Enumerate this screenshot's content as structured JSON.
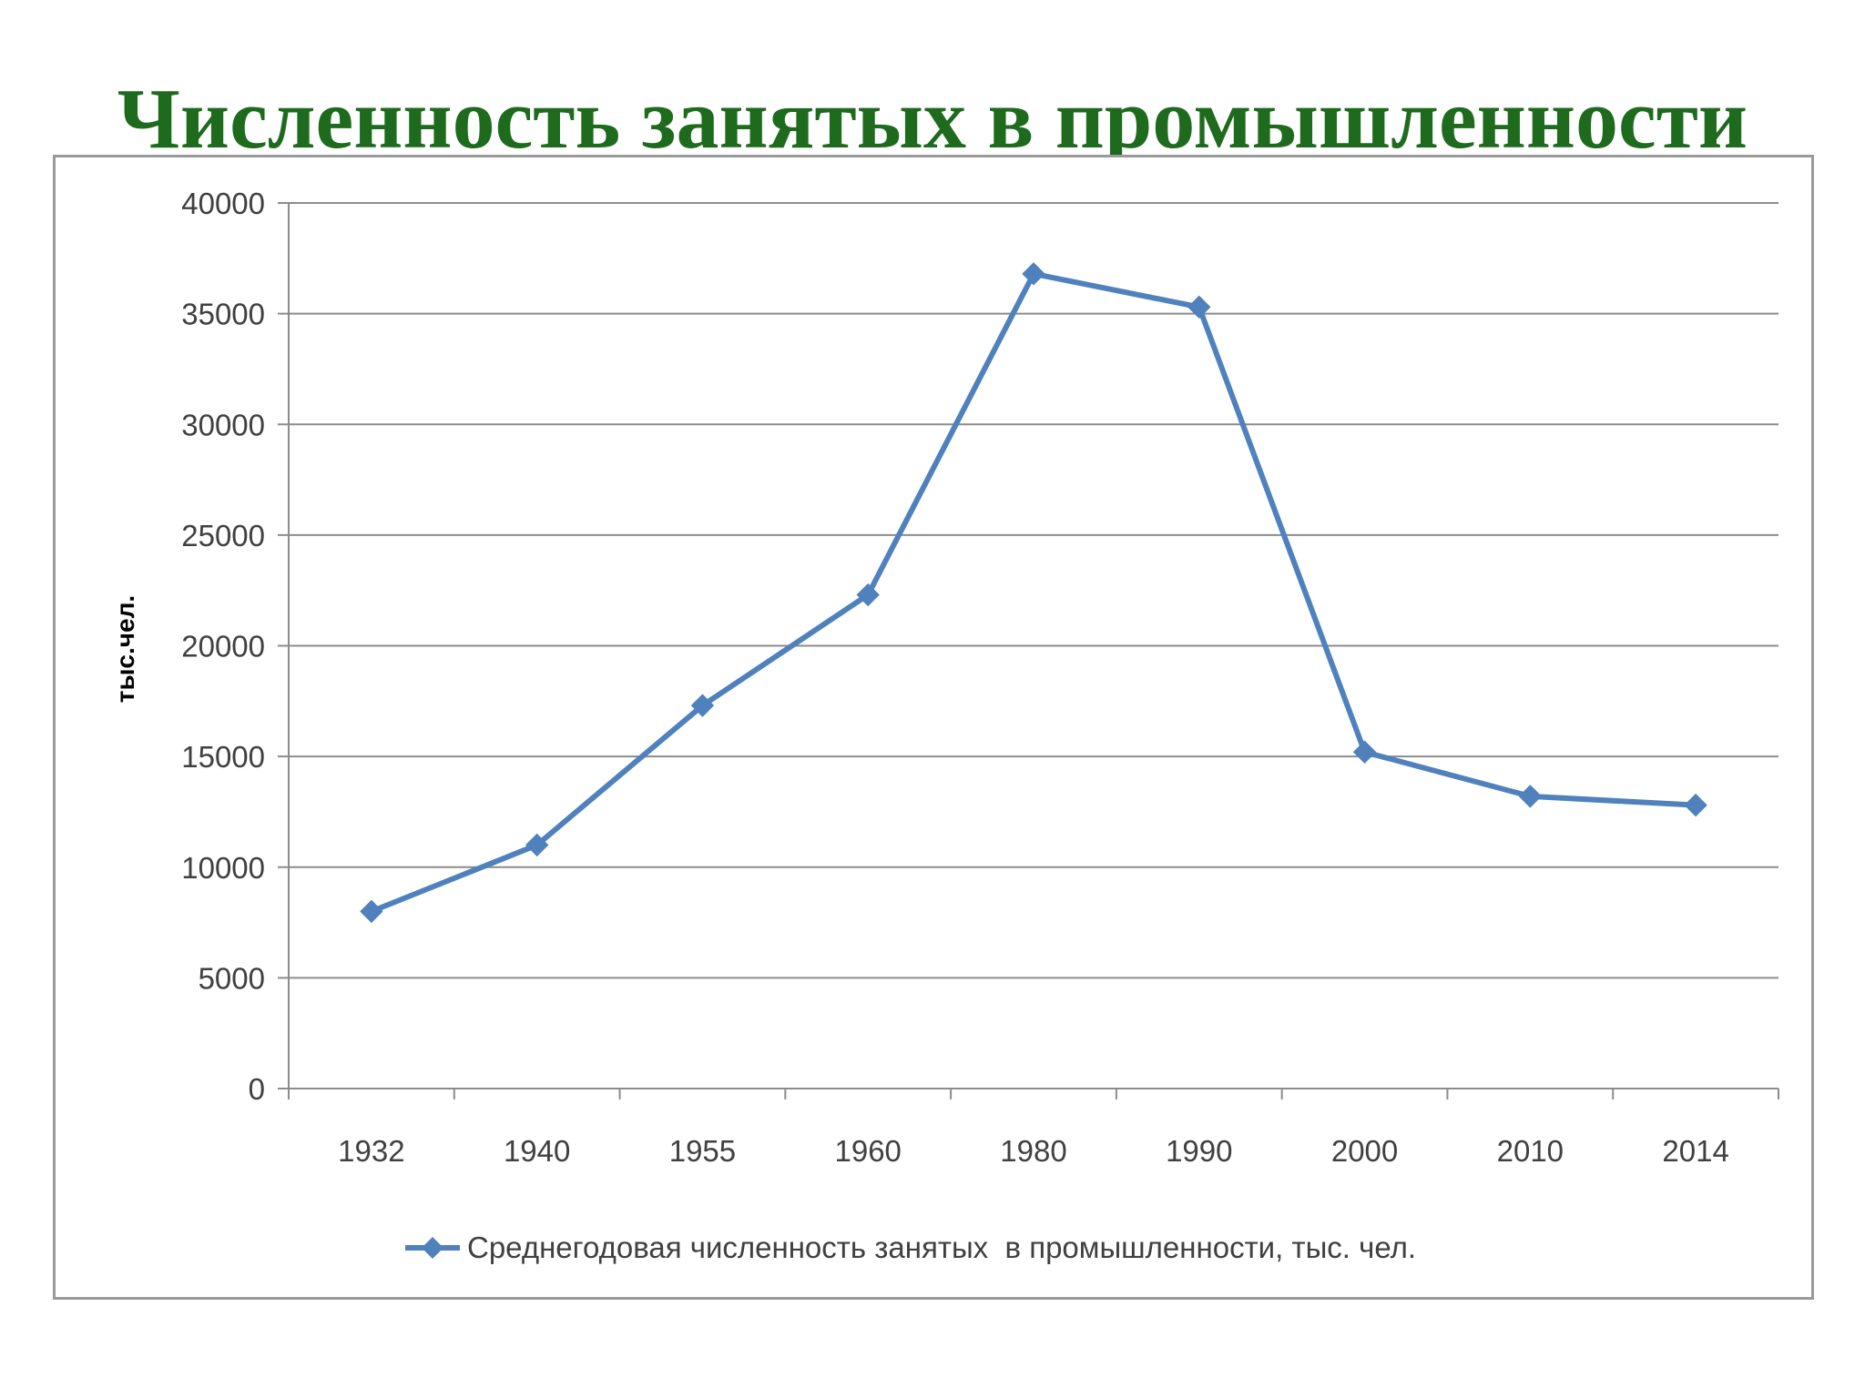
{
  "slide": {
    "title": "Численность занятых в промышленности",
    "title_color": "#1e6b1e"
  },
  "chart_data": {
    "type": "line",
    "categories": [
      "1932",
      "1940",
      "1955",
      "1960",
      "1980",
      "1990",
      "2000",
      "2010",
      "2014"
    ],
    "series": [
      {
        "name": "Среднегодовая численность занятых  в промышленности, тыс. чел.",
        "values": [
          8000,
          11000,
          17300,
          22300,
          36800,
          35300,
          15200,
          13200,
          12800
        ],
        "color": "#4f81bd",
        "marker": "diamond"
      }
    ],
    "ylabel": "тыс.чел.",
    "xlabel": "",
    "ylim": [
      0,
      40000
    ],
    "yticks": [
      0,
      5000,
      10000,
      15000,
      20000,
      25000,
      30000,
      35000,
      40000
    ],
    "grid": true,
    "legend_position": "bottom"
  }
}
